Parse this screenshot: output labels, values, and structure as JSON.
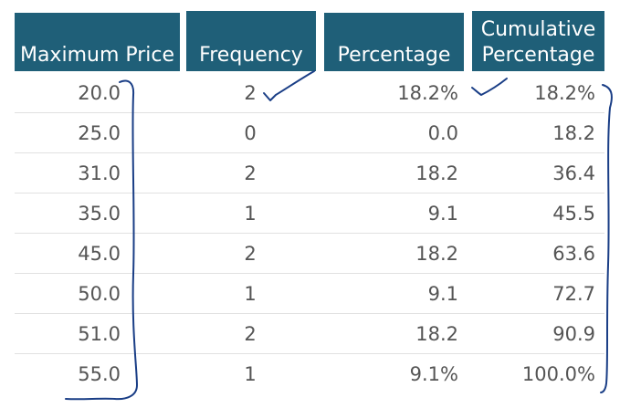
{
  "table": {
    "headers": [
      [
        "Maximum Price"
      ],
      [
        "Frequency"
      ],
      [
        "Percentage"
      ],
      [
        "Cumulative",
        "Percentage"
      ]
    ],
    "rows": [
      [
        "20.0",
        "2",
        "18.2%",
        "18.2%"
      ],
      [
        "25.0",
        "0",
        "0.0",
        "18.2"
      ],
      [
        "31.0",
        "2",
        "18.2",
        "36.4"
      ],
      [
        "35.0",
        "1",
        "9.1",
        "45.5"
      ],
      [
        "45.0",
        "2",
        "18.2",
        "63.6"
      ],
      [
        "50.0",
        "1",
        "9.1",
        "72.7"
      ],
      [
        "51.0",
        "2",
        "18.2",
        "90.9"
      ],
      [
        "55.0",
        "1",
        "9.1%",
        "100.0%"
      ]
    ]
  },
  "colors": {
    "header_bg": "#1f5f78",
    "header_text": "#ffffff",
    "cell_text": "#555555",
    "row_divider": "#e1e1e1",
    "ink": "#1a3e86"
  },
  "annotations": {
    "checkmarks": [
      "frequency-first-row-check",
      "percentage-first-row-check"
    ],
    "brackets": [
      "maximum-price-bracket",
      "cumulative-percentage-bracket"
    ]
  }
}
